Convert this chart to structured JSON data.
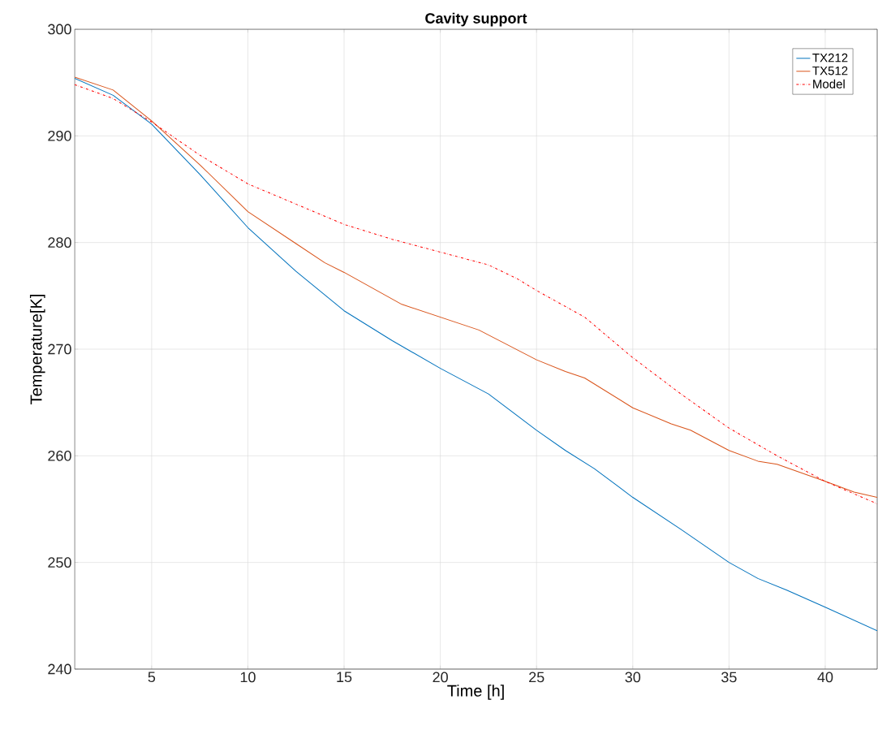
{
  "chart_data": {
    "type": "line",
    "title": "Cavity support",
    "xlabel": "Time [h]",
    "ylabel": "Temperature[K]",
    "xlim": [
      1,
      42.7
    ],
    "ylim": [
      240,
      300
    ],
    "xticks": [
      5,
      10,
      15,
      20,
      25,
      30,
      35,
      40
    ],
    "yticks": [
      240,
      250,
      260,
      270,
      280,
      290,
      300
    ],
    "grid": true,
    "legend": "top right",
    "series": [
      {
        "name": "TX212",
        "color": "#0072bd",
        "line_style": "solid",
        "x": [
          1,
          3,
          5,
          7.5,
          10,
          12.5,
          15,
          17.5,
          20,
          22.5,
          25,
          26.5,
          28,
          30,
          32.5,
          35,
          36.5,
          38,
          40,
          42.7
        ],
        "values": [
          295.4,
          293.8,
          291.1,
          286.4,
          281.4,
          277.3,
          273.6,
          270.8,
          268.2,
          265.8,
          262.4,
          260.5,
          258.8,
          256.1,
          253.1,
          250.0,
          248.5,
          247.4,
          245.8,
          243.6
        ]
      },
      {
        "name": "TX512",
        "color": "#d95319",
        "line_style": "solid",
        "x": [
          1,
          3,
          5,
          7.5,
          10,
          12.5,
          14,
          15,
          18,
          20,
          22,
          25,
          26.5,
          27.5,
          30,
          32,
          33,
          35,
          36.5,
          37.5,
          40,
          41.5,
          42.7
        ],
        "values": [
          295.5,
          294.3,
          291.4,
          287.3,
          282.9,
          279.9,
          278.1,
          277.2,
          274.2,
          273.0,
          271.8,
          269.0,
          267.9,
          267.3,
          264.5,
          263.0,
          262.4,
          260.5,
          259.5,
          259.2,
          257.6,
          256.6,
          256.1
        ]
      },
      {
        "name": "Model",
        "color": "#ff0000",
        "line_style": "dashdot",
        "x": [
          1,
          3,
          5,
          7.5,
          10,
          12.5,
          15,
          17.5,
          20,
          22.5,
          24,
          25,
          27.5,
          30,
          32.5,
          35,
          37.5,
          40,
          42.7
        ],
        "values": [
          294.8,
          293.5,
          291.3,
          288.2,
          285.5,
          283.6,
          281.7,
          280.3,
          279.1,
          277.9,
          276.6,
          275.5,
          273.0,
          269.2,
          265.8,
          262.6,
          260.0,
          257.6,
          255.5
        ]
      }
    ]
  }
}
